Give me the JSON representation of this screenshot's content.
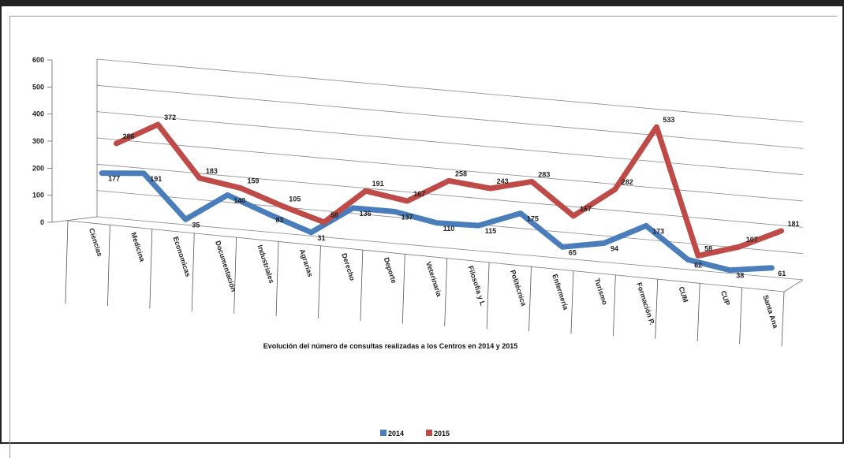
{
  "chart_data": {
    "type": "line",
    "title": "",
    "xlabel": "Evolución del número de consultas realizadas a los Centros en 2014 y 2015",
    "ylabel": "",
    "ylim": [
      0,
      600
    ],
    "yticks": [
      0,
      100,
      200,
      300,
      400,
      500,
      600
    ],
    "grid": true,
    "legend_position": "bottom",
    "categories": [
      "Ciencias",
      "Medicina",
      "Economicas",
      "Documentación",
      "Industriales",
      "Agrarias",
      "Derecho",
      "Deporte",
      "Veterinaria",
      "Filosofia y L",
      "Politécnica",
      "Enfermería",
      "Turismo",
      "Formación P.",
      "CUM",
      "CUP",
      "Santa Ana"
    ],
    "series": [
      {
        "name": "2014",
        "color": "#4a7ebb",
        "values": [
          177,
          191,
          35,
          140,
          83,
          31,
          136,
          137,
          110,
          115,
          175,
          65,
          94,
          173,
          62,
          38,
          61
        ],
        "labels": [
          "177",
          "191",
          "35",
          "140",
          "83",
          "31",
          "136",
          "137",
          "110",
          "115",
          "175",
          "65",
          "94",
          "173",
          "62",
          "38",
          "61"
        ]
      },
      {
        "name": "2015",
        "color": "#be4b48",
        "values": [
          286,
          372,
          183,
          159,
          105,
          58,
          191,
          167,
          258,
          243,
          283,
          167,
          282,
          533,
          58,
          107,
          181
        ],
        "labels": [
          "286",
          "372",
          "183",
          "159",
          "105",
          "58",
          "191",
          "167",
          "258",
          "243",
          "283",
          "167",
          "282",
          "533",
          "58",
          "107",
          "181"
        ]
      }
    ]
  }
}
